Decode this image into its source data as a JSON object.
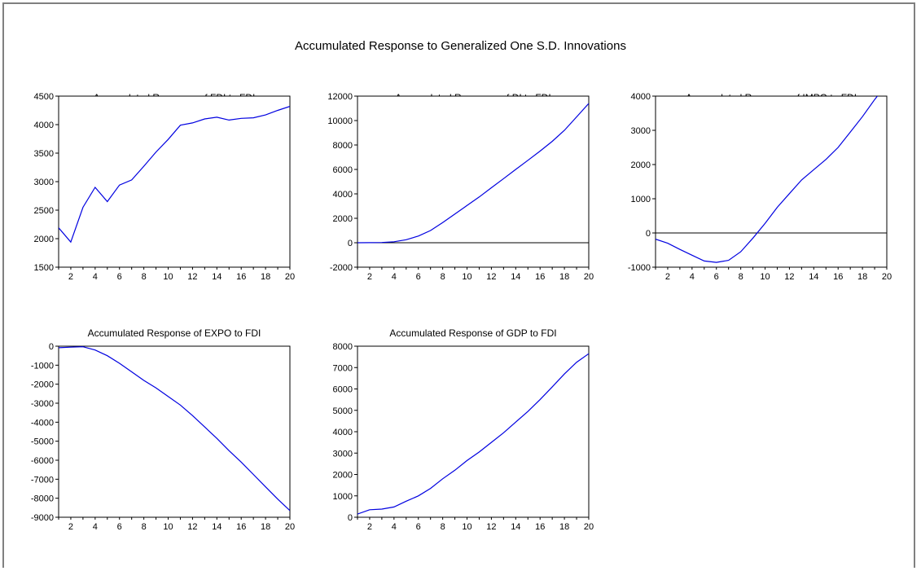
{
  "figure": {
    "title": "Accumulated Response to Generalized One S.D. Innovations"
  },
  "colors": {
    "series": "#0000e0",
    "zero_line": "#000000",
    "axis": "#000000"
  },
  "chart_data": [
    {
      "type": "line",
      "title": "Accumulated Response of FDI to FDI",
      "x": [
        1,
        2,
        3,
        4,
        5,
        6,
        7,
        8,
        9,
        10,
        11,
        12,
        13,
        14,
        15,
        16,
        17,
        18,
        19,
        20
      ],
      "x_ticks": [
        "2",
        "4",
        "6",
        "8",
        "10",
        "12",
        "14",
        "16",
        "18",
        "20"
      ],
      "y_ticks": [
        "1500",
        "2000",
        "2500",
        "3000",
        "3500",
        "4000",
        "4500"
      ],
      "ylim": [
        1500,
        4500
      ],
      "zero_line": false,
      "series": [
        {
          "values": [
            2190,
            1940,
            2550,
            2900,
            2650,
            2940,
            3030,
            3270,
            3520,
            3740,
            3990,
            4030,
            4100,
            4130,
            4080,
            4110,
            4120,
            4170,
            4250,
            4320
          ]
        }
      ]
    },
    {
      "type": "line",
      "title": "Accumulated Response of DI to FDI",
      "x": [
        1,
        2,
        3,
        4,
        5,
        6,
        7,
        8,
        9,
        10,
        11,
        12,
        13,
        14,
        15,
        16,
        17,
        18,
        19,
        20
      ],
      "x_ticks": [
        "2",
        "4",
        "6",
        "8",
        "10",
        "12",
        "14",
        "16",
        "18",
        "20"
      ],
      "y_ticks": [
        "-2000",
        "0",
        "2000",
        "4000",
        "6000",
        "8000",
        "10000",
        "12000"
      ],
      "ylim": [
        -2000,
        12000
      ],
      "zero_line": true,
      "series": [
        {
          "values": [
            0,
            10,
            20,
            80,
            250,
            550,
            1000,
            1650,
            2350,
            3050,
            3750,
            4500,
            5250,
            6000,
            6750,
            7500,
            8300,
            9200,
            10300,
            11400
          ]
        }
      ]
    },
    {
      "type": "line",
      "title": "Accumulated Response of IMPO to FDI",
      "x": [
        1,
        2,
        3,
        4,
        5,
        6,
        7,
        8,
        9,
        10,
        11,
        12,
        13,
        14,
        15,
        16,
        17,
        18,
        19,
        20
      ],
      "x_ticks": [
        "2",
        "4",
        "6",
        "8",
        "10",
        "12",
        "14",
        "16",
        "18",
        "20"
      ],
      "y_ticks": [
        "-1000",
        "0",
        "1000",
        "2000",
        "3000",
        "4000"
      ],
      "ylim": [
        -1000,
        4000
      ],
      "zero_line": true,
      "series": [
        {
          "values": [
            -180,
            -300,
            -480,
            -650,
            -820,
            -860,
            -800,
            -550,
            -150,
            280,
            750,
            1150,
            1550,
            1850,
            2150,
            2500,
            2950,
            3400,
            3900,
            4350
          ]
        }
      ]
    },
    {
      "type": "line",
      "title": "Accumulated Response of EXPO to FDI",
      "x": [
        1,
        2,
        3,
        4,
        5,
        6,
        7,
        8,
        9,
        10,
        11,
        12,
        13,
        14,
        15,
        16,
        17,
        18,
        19,
        20
      ],
      "x_ticks": [
        "2",
        "4",
        "6",
        "8",
        "10",
        "12",
        "14",
        "16",
        "18",
        "20"
      ],
      "y_ticks": [
        "-9000",
        "-8000",
        "-7000",
        "-6000",
        "-5000",
        "-4000",
        "-3000",
        "-2000",
        "-1000",
        "0"
      ],
      "ylim": [
        -9000,
        0
      ],
      "zero_line": false,
      "series": [
        {
          "values": [
            -80,
            -50,
            -30,
            -200,
            -500,
            -900,
            -1350,
            -1800,
            -2200,
            -2650,
            -3100,
            -3650,
            -4250,
            -4850,
            -5500,
            -6100,
            -6750,
            -7400,
            -8050,
            -8650
          ]
        }
      ]
    },
    {
      "type": "line",
      "title": "Accumulated Response of GDP to FDI",
      "x": [
        1,
        2,
        3,
        4,
        5,
        6,
        7,
        8,
        9,
        10,
        11,
        12,
        13,
        14,
        15,
        16,
        17,
        18,
        19,
        20
      ],
      "x_ticks": [
        "2",
        "4",
        "6",
        "8",
        "10",
        "12",
        "14",
        "16",
        "18",
        "20"
      ],
      "y_ticks": [
        "0",
        "1000",
        "2000",
        "3000",
        "4000",
        "5000",
        "6000",
        "7000",
        "8000"
      ],
      "ylim": [
        0,
        8000
      ],
      "zero_line": false,
      "series": [
        {
          "values": [
            150,
            350,
            380,
            480,
            750,
            1000,
            1350,
            1800,
            2200,
            2650,
            3050,
            3500,
            3950,
            4450,
            4950,
            5500,
            6100,
            6700,
            7250,
            7650
          ]
        }
      ]
    }
  ]
}
